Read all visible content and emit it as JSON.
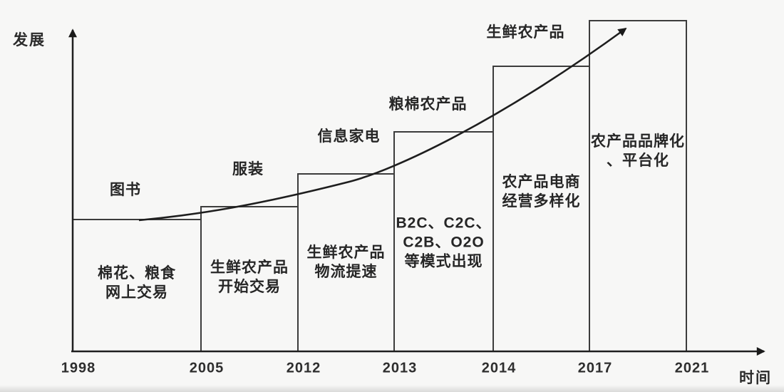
{
  "chart_data": {
    "type": "bar",
    "title": "",
    "xlabel": "时间",
    "ylabel": "发展",
    "x_ticks": [
      "1998",
      "2005",
      "2012",
      "2013",
      "2014",
      "2017",
      "2021"
    ],
    "ylim": [
      0,
      100
    ],
    "grid": false,
    "legend": "none",
    "trend_line": "exponential growth curve ending in an arrow at top right",
    "bars": [
      {
        "period": "1998-2005",
        "value": 39.9,
        "top_label": "图书",
        "note_lines": [
          "棉花、粮食",
          "网上交易"
        ]
      },
      {
        "period": "2005-2012",
        "value": 43.8,
        "top_label": "服装",
        "note_lines": [
          "生鲜农产品",
          "开始交易"
        ]
      },
      {
        "period": "2012-2013",
        "value": 53.7,
        "top_label": "信息家电",
        "note_lines": [
          "生鲜农产品",
          "物流提速"
        ]
      },
      {
        "period": "2013-2014",
        "value": 66.4,
        "top_label": "粮棉农产品",
        "note_lines": [
          "B2C、C2C、",
          "C2B、O2O",
          "等模式出现"
        ]
      },
      {
        "period": "2014-2017",
        "value": 86.2,
        "top_label": "生鲜农产品",
        "note_lines": [
          "农产品电商",
          "经营多样化"
        ]
      },
      {
        "period": "2017-2021",
        "value": 100,
        "top_label": "",
        "note_lines": [
          "农产品品牌化",
          "、平台化"
        ]
      }
    ]
  },
  "colors": {
    "background": "#f7f7f6",
    "bar_border": "#3c3c3c",
    "axis_line": "#1f1f1f",
    "curve_line": "#1e1e1e",
    "text": "#2b2b2b"
  }
}
